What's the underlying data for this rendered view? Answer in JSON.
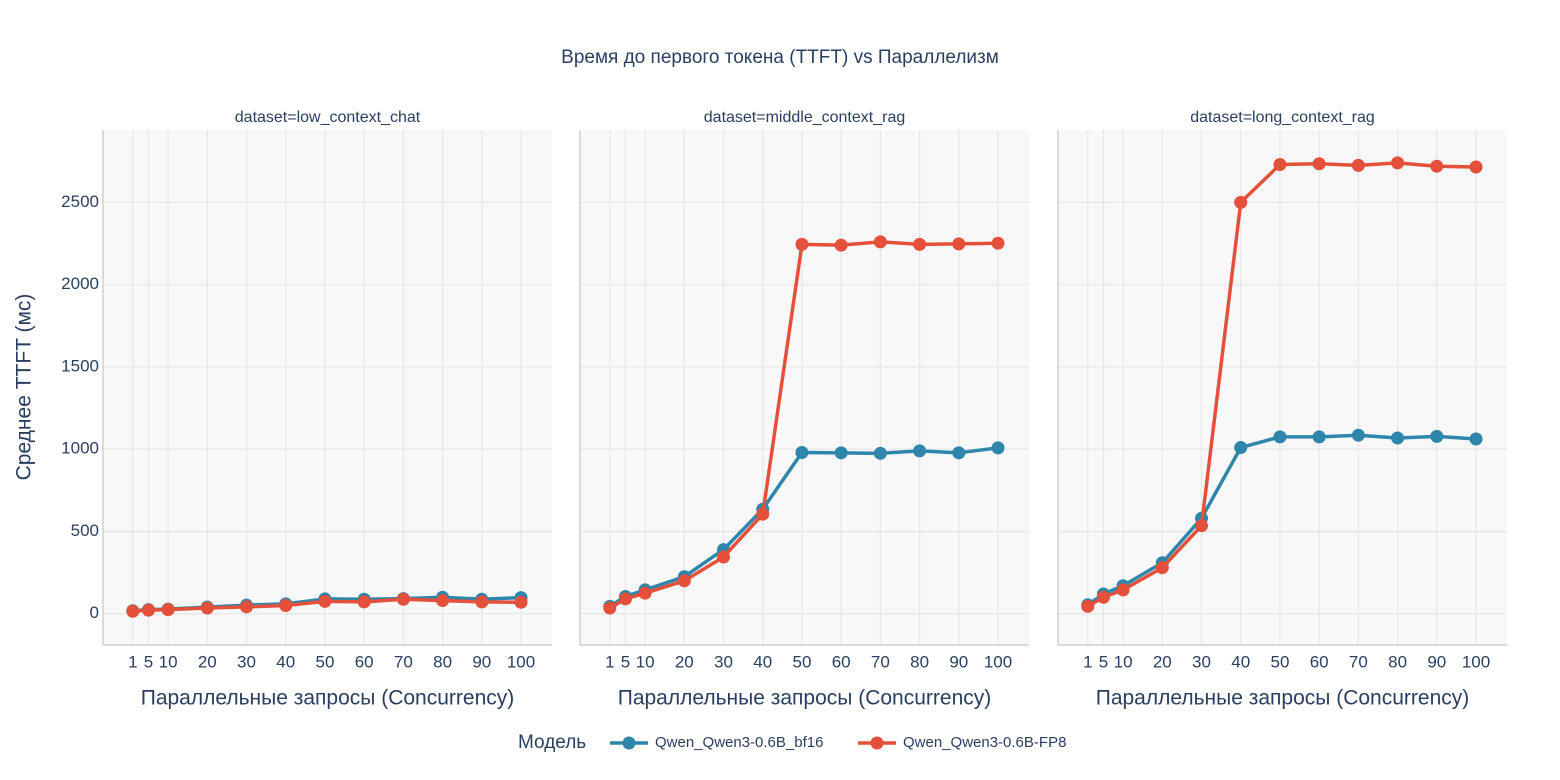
{
  "chart_data": {
    "type": "line",
    "title": "Время до первого токена (TTFT) vs Параллелизм",
    "y_label": "Среднее TTFT (мс)",
    "x_label": "Параллельные запросы (Concurrency)",
    "legend_title": "Модель",
    "legend_position": "bottom",
    "grid": true,
    "x": [
      1,
      5,
      10,
      20,
      30,
      40,
      50,
      60,
      70,
      80,
      90,
      100
    ],
    "xlim": [
      -6.6,
      107.9
    ],
    "xticks": [
      1,
      5,
      10,
      20,
      30,
      40,
      50,
      60,
      70,
      80,
      90,
      100
    ],
    "ylim": [
      -190,
      2940
    ],
    "yticks": [
      0,
      500,
      1000,
      1500,
      2000,
      2500
    ],
    "panels": [
      {
        "subtitle": "dataset=low_context_chat",
        "series": [
          {
            "name": "Qwen_Qwen3-0.6B_bf16",
            "color": "#2e86ab",
            "values": [
              18,
              25,
              28,
              40,
              52,
              60,
              90,
              88,
              92,
              100,
              88,
              98
            ]
          },
          {
            "name": "Qwen_Qwen3-0.6B-FP8",
            "color": "#e4503a",
            "values": [
              15,
              22,
              25,
              35,
              42,
              50,
              75,
              72,
              88,
              80,
              72,
              70
            ]
          }
        ]
      },
      {
        "subtitle": "dataset=middle_context_rag",
        "series": [
          {
            "name": "Qwen_Qwen3-0.6B_bf16",
            "color": "#2e86ab",
            "values": [
              45,
              105,
              145,
              225,
              390,
              635,
              980,
              978,
              975,
              990,
              978,
              1008
            ]
          },
          {
            "name": "Qwen_Qwen3-0.6B-FP8",
            "color": "#e4503a",
            "values": [
              35,
              90,
              125,
              200,
              345,
              605,
              2245,
              2240,
              2260,
              2245,
              2248,
              2252
            ]
          }
        ]
      },
      {
        "subtitle": "dataset=long_context_rag",
        "series": [
          {
            "name": "Qwen_Qwen3-0.6B_bf16",
            "color": "#2e86ab",
            "values": [
              55,
              120,
              170,
              310,
              580,
              1010,
              1075,
              1075,
              1085,
              1068,
              1078,
              1062
            ]
          },
          {
            "name": "Qwen_Qwen3-0.6B-FP8",
            "color": "#e4503a",
            "values": [
              45,
              100,
              145,
              280,
              535,
              2500,
              2730,
              2735,
              2725,
              2740,
              2720,
              2715
            ]
          }
        ]
      }
    ]
  }
}
